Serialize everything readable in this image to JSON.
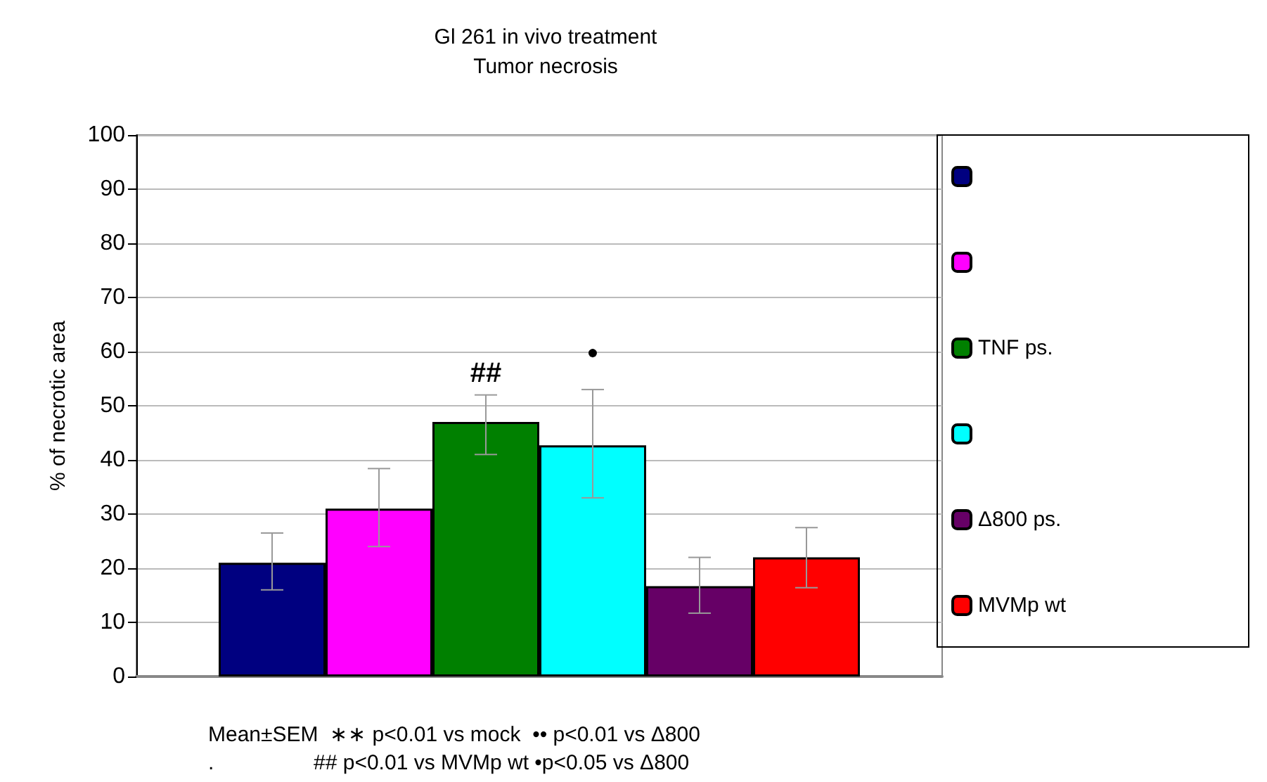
{
  "chart_data": {
    "type": "bar",
    "title": "Gl 261 in vivo treatment",
    "subtitle": "Tumor necrosis",
    "ylabel": "% of necrotic area",
    "categories": [
      null
    ],
    "series": [
      {
        "color": "#000080",
        "values": [
          21
        ],
        "errors": [
          [
            16,
            26.5
          ]
        ]
      },
      {
        "color": "#ff00ff",
        "values": [
          31
        ],
        "errors": [
          [
            24,
            38.4
          ]
        ]
      },
      {
        "name": "TNF ps.",
        "color": "#008000",
        "values": [
          47
        ],
        "errors": [
          [
            41,
            52
          ]
        ]
      },
      {
        "color": "#00ffff",
        "values": [
          42.7
        ],
        "errors": [
          [
            33,
            53
          ]
        ]
      },
      {
        "name": "Δ800 ps.",
        "color": "#660066",
        "values": [
          16.7
        ],
        "errors": [
          [
            11.7,
            22
          ]
        ]
      },
      {
        "name": "MVMp wt",
        "color": "#ff0000",
        "values": [
          22
        ],
        "errors": [
          [
            16.4,
            27.5
          ]
        ]
      }
    ],
    "ylim": [
      0,
      100
    ],
    "yticks": [
      0,
      10,
      20,
      30,
      40,
      50,
      60,
      70,
      80,
      90,
      100
    ],
    "grid": "y",
    "legend": "right",
    "tick_labels": "y",
    "annotations": [
      "##",
      "●",
      "Mean±SEM  ∗∗ p<0.01 vs mock  •• p<0.01 vs Δ800",
      ".                 ## p<0.01 vs MVMp wt •p<0.05 vs Δ800"
    ]
  }
}
